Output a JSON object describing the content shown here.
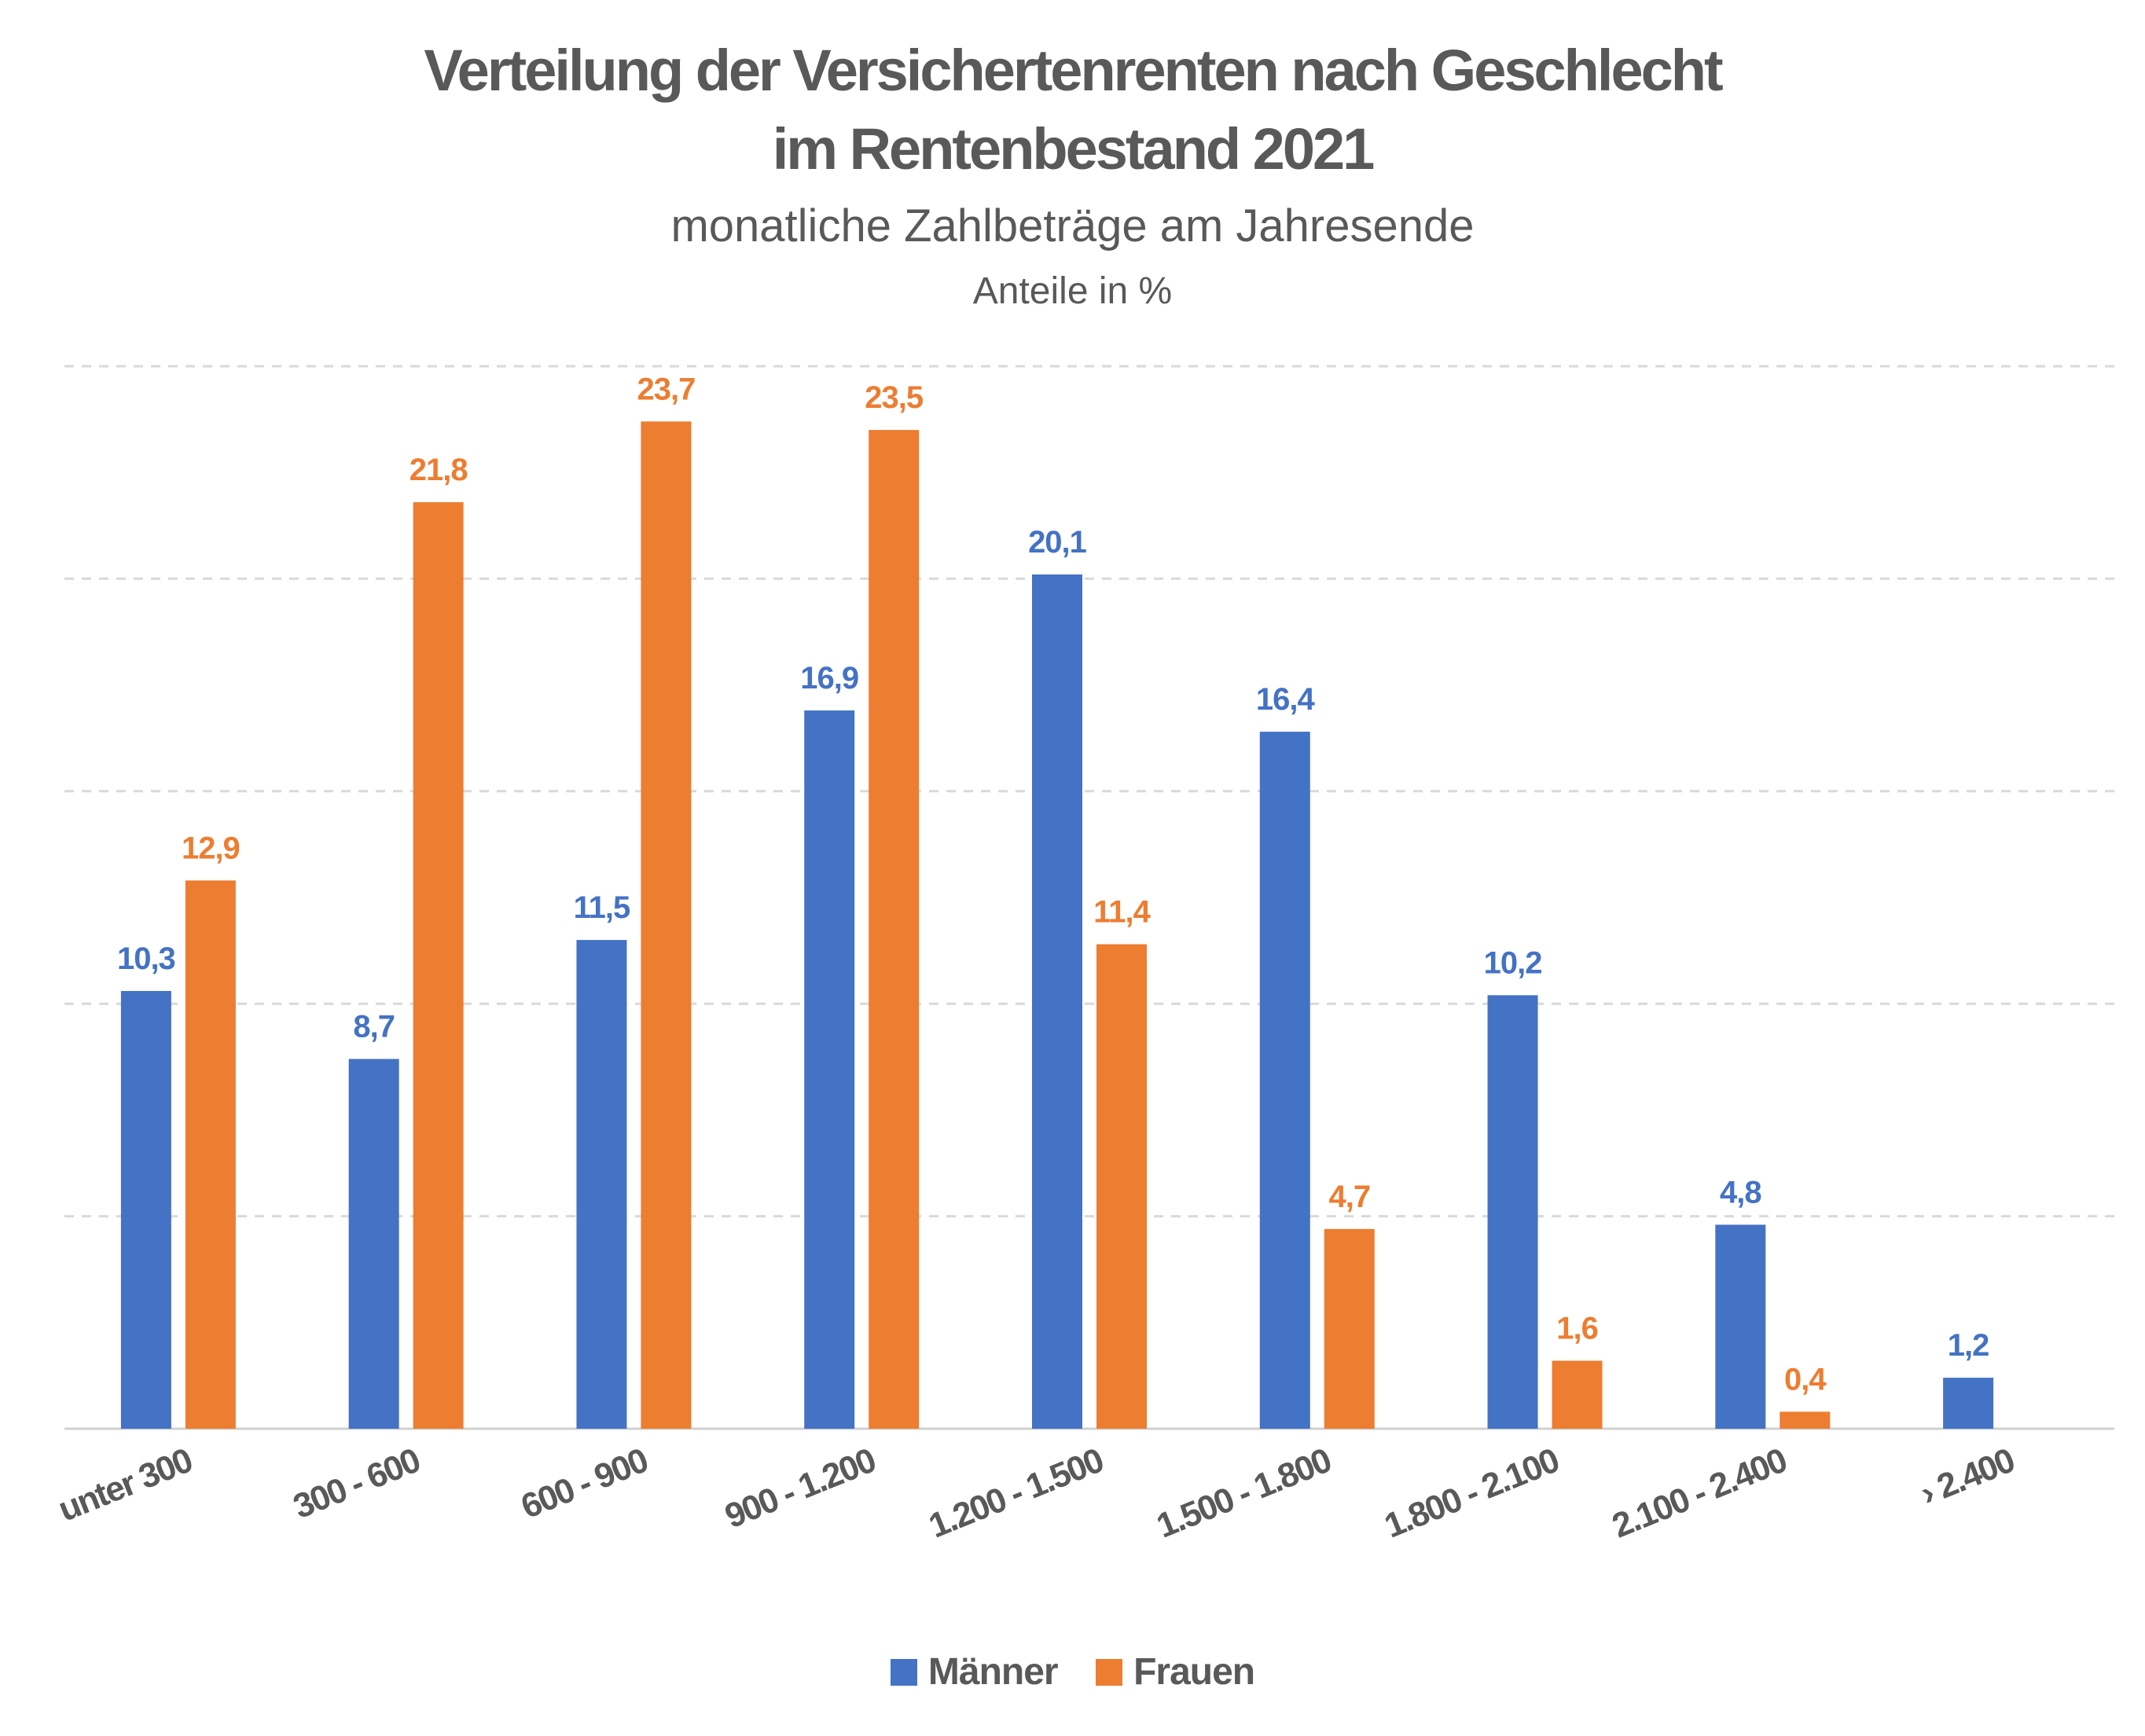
{
  "colors": {
    "maenner": "#4472C4",
    "frauen": "#ED7D31",
    "text": "#595959",
    "grid": "#d9d9d9"
  },
  "chart_data": {
    "type": "bar",
    "title_line1": "Verteilung der Versichertenrenten nach Geschlecht",
    "title_line2": "im Rentenbestand 2021",
    "subtitle": "monatliche Zahlbeträge am Jahresende",
    "unit": "Anteile in %",
    "categories": [
      "unter 300",
      "300 - 600",
      "600 - 900",
      "900 - 1.200",
      "1.200 - 1.500",
      "1.500 - 1.800",
      "1.800 - 2.100",
      "2.100 - 2.400",
      "› 2.400"
    ],
    "series": [
      {
        "name": "Männer",
        "values": [
          10.3,
          8.7,
          11.5,
          16.9,
          20.1,
          16.4,
          10.2,
          4.8,
          1.2
        ],
        "labels": [
          "10,3",
          "8,7",
          "11,5",
          "16,9",
          "20,1",
          "16,4",
          "10,2",
          "4,8",
          "1,2"
        ]
      },
      {
        "name": "Frauen",
        "values": [
          12.9,
          21.8,
          23.7,
          23.5,
          11.4,
          4.7,
          1.6,
          0.4,
          null
        ],
        "labels": [
          "12,9",
          "21,8",
          "23,7",
          "23,5",
          "11,4",
          "4,7",
          "1,6",
          "0,4",
          ""
        ]
      }
    ],
    "ylim": [
      0,
      25
    ],
    "grid": true,
    "legend_position": "bottom"
  }
}
